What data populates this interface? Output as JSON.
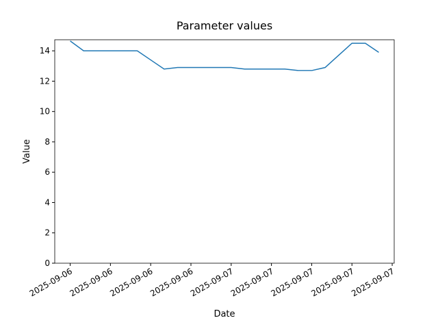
{
  "chart_data": {
    "type": "line",
    "title": "Parameter values",
    "xlabel": "Date",
    "ylabel": "Value",
    "x": [
      0,
      1,
      2,
      3,
      4,
      5,
      6,
      7,
      8,
      9,
      10,
      11,
      12,
      13,
      14,
      15,
      16,
      17,
      18,
      19,
      20,
      21,
      22,
      23
    ],
    "series": [
      {
        "name": "Value",
        "color": "#1f77b4",
        "values": [
          14.65,
          14.0,
          14.0,
          14.0,
          14.0,
          14.0,
          13.4,
          12.8,
          12.9,
          12.9,
          12.9,
          12.9,
          12.9,
          12.8,
          12.8,
          12.8,
          12.8,
          12.7,
          12.7,
          12.9,
          13.7,
          14.5,
          14.5,
          13.9
        ]
      }
    ],
    "xlim": [
      -1.15,
      24.15
    ],
    "xticks": [
      {
        "value": 0,
        "label": "2025-09-06"
      },
      {
        "value": 3,
        "label": "2025-09-06"
      },
      {
        "value": 6,
        "label": "2025-09-06"
      },
      {
        "value": 9,
        "label": "2025-09-06"
      },
      {
        "value": 12,
        "label": "2025-09-07"
      },
      {
        "value": 15,
        "label": "2025-09-07"
      },
      {
        "value": 18,
        "label": "2025-09-07"
      },
      {
        "value": 21,
        "label": "2025-09-07"
      },
      {
        "value": 24,
        "label": "2025-09-07"
      }
    ],
    "ylim": [
      0,
      14.73
    ],
    "yticks": [
      0,
      2,
      4,
      6,
      8,
      10,
      12,
      14
    ]
  }
}
